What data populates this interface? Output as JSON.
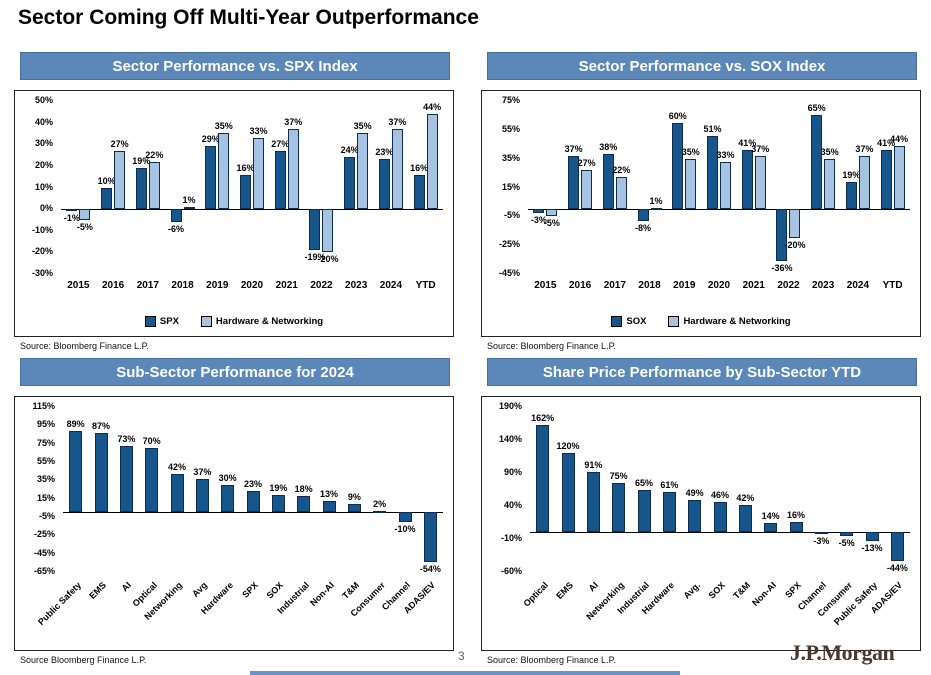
{
  "page": {
    "title": "Sector Coming Off Multi-Year Outperformance",
    "page_number": "3",
    "logo_text": "J.P.Morgan"
  },
  "colors": {
    "header_bg": "#5b87b9",
    "dark_bar": "#17568c",
    "light_bar": "#a6c3e1",
    "bar_border": "#0e2c4d",
    "logo": "#4b382b"
  },
  "chart_data": [
    {
      "type": "bar",
      "title": "Sector Performance vs. SPX Index",
      "source": "Source: Bloomberg Finance L.P.",
      "categories": [
        "2015",
        "2016",
        "2017",
        "2018",
        "2019",
        "2020",
        "2021",
        "2022",
        "2023",
        "2024",
        "YTD"
      ],
      "series": [
        {
          "name": "SPX",
          "values": [
            -1,
            10,
            19,
            -6,
            29,
            16,
            27,
            -19,
            24,
            23,
            16
          ]
        },
        {
          "name": "Hardware & Networking",
          "values": [
            -5,
            27,
            22,
            1,
            35,
            33,
            37,
            -20,
            35,
            37,
            44
          ]
        }
      ],
      "yticks": [
        50,
        40,
        30,
        20,
        10,
        0,
        -10,
        -20,
        -30
      ],
      "ylim": [
        -30,
        50
      ],
      "legend_position": "bottom",
      "grid": false
    },
    {
      "type": "bar",
      "title": "Sector Performance vs. SOX Index",
      "source": "Source: Bloomberg Finance L.P.",
      "categories": [
        "2015",
        "2016",
        "2017",
        "2018",
        "2019",
        "2020",
        "2021",
        "2022",
        "2023",
        "2024",
        "YTD"
      ],
      "series": [
        {
          "name": "SOX",
          "values": [
            -3,
            37,
            38,
            -8,
            60,
            51,
            41,
            -36,
            65,
            19,
            41
          ]
        },
        {
          "name": "Hardware & Networking",
          "values": [
            -5,
            27,
            22,
            1,
            35,
            33,
            37,
            -20,
            35,
            37,
            44
          ]
        }
      ],
      "yticks": [
        75,
        55,
        35,
        15,
        -5,
        -25,
        -45
      ],
      "ylim": [
        -45,
        75
      ],
      "legend_position": "bottom",
      "grid": false
    },
    {
      "type": "bar",
      "title": "Sub-Sector Performance for 2024",
      "source": "Source Bloomberg Finance L.P.",
      "categories": [
        "Public Safety",
        "EMS",
        "AI",
        "Optical",
        "Networking",
        "Avg",
        "Hardware",
        "SPX",
        "SOX",
        "Industrial",
        "Non-AI",
        "T&M",
        "Consumer",
        "Channel",
        "ADAS/EV"
      ],
      "values": [
        89,
        87,
        73,
        70,
        42,
        37,
        30,
        23,
        19,
        18,
        13,
        9,
        2,
        -10,
        -54
      ],
      "yticks": [
        115,
        95,
        75,
        55,
        35,
        15,
        -5,
        -25,
        -45,
        -65
      ],
      "ylim": [
        -65,
        115
      ],
      "legend_position": "none",
      "grid": false
    },
    {
      "type": "bar",
      "title": "Share Price Performance by Sub-Sector YTD",
      "source": "Source: Bloomberg Finance L.P.",
      "categories": [
        "Optical",
        "EMS",
        "AI",
        "Networking",
        "Industrial",
        "Hardware",
        "Avg.",
        "SOX",
        "T&M",
        "Non-AI",
        "SPX",
        "Channel",
        "Consumer",
        "Public Safety",
        "ADAS/EV"
      ],
      "values": [
        162,
        120,
        91,
        75,
        65,
        61,
        49,
        46,
        42,
        14,
        16,
        -3,
        -5,
        -13,
        -44
      ],
      "yticks": [
        190,
        140,
        90,
        40,
        -10,
        -60
      ],
      "ylim": [
        -60,
        190
      ],
      "legend_position": "none",
      "grid": false
    }
  ]
}
